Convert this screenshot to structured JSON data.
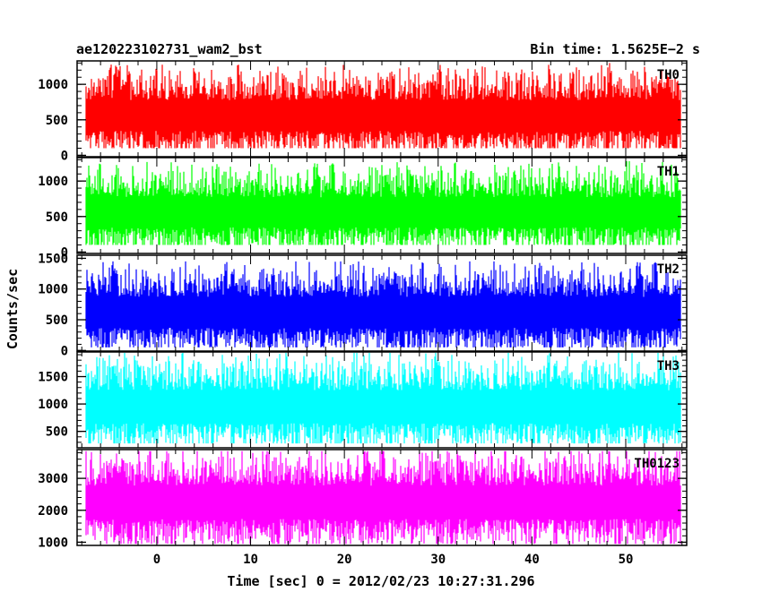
{
  "header": {
    "left_title": "ae120223102731_wam2_bst",
    "right_title": "Bin time: 1.5625E−2 s"
  },
  "axes": {
    "xlabel": "Time [sec] 0 = 2012/02/23 10:27:31.296",
    "ylabel": "Counts/sec"
  },
  "chart_data": {
    "type": "line",
    "x_range": [
      -8.5,
      56.5
    ],
    "x_ticks": [
      0,
      10,
      20,
      30,
      40,
      50
    ],
    "x_tick_labels": [
      "0",
      "10",
      "20",
      "30",
      "40",
      "50"
    ],
    "data_x_range": [
      -7.5,
      55.8
    ],
    "panels": [
      {
        "label": "TH0",
        "color": "#ff0000",
        "ylim": [
          -20,
          1330
        ],
        "yticks": [
          0,
          500,
          1000
        ],
        "ytick_labels": [
          "0",
          "500",
          "1000"
        ],
        "min": 100,
        "max": 1300,
        "mean": 560
      },
      {
        "label": "TH1",
        "color": "#00ff00",
        "ylim": [
          -20,
          1330
        ],
        "yticks": [
          0,
          500,
          1000
        ],
        "ytick_labels": [
          "0",
          "500",
          "1000"
        ],
        "min": 100,
        "max": 1280,
        "mean": 560
      },
      {
        "label": "TH2",
        "color": "#0000ff",
        "ylim": [
          -10,
          1550
        ],
        "yticks": [
          0,
          500,
          1000,
          1500
        ],
        "ytick_labels": [
          "0",
          "500",
          "1000",
          "1500"
        ],
        "min": 50,
        "max": 1450,
        "mean": 620
      },
      {
        "label": "TH3",
        "color": "#00ffff",
        "ylim": [
          200,
          1950
        ],
        "yticks": [
          500,
          1000,
          1500
        ],
        "ytick_labels": [
          "500",
          "1000",
          "1500"
        ],
        "min": 280,
        "max": 1950,
        "mean": 950
      },
      {
        "label": "TH0123",
        "color": "#ff00ff",
        "ylim": [
          900,
          3900
        ],
        "yticks": [
          1000,
          2000,
          3000
        ],
        "ytick_labels": [
          "1000",
          "2000",
          "3000"
        ],
        "min": 950,
        "max": 3850,
        "mean": 2250
      }
    ]
  }
}
